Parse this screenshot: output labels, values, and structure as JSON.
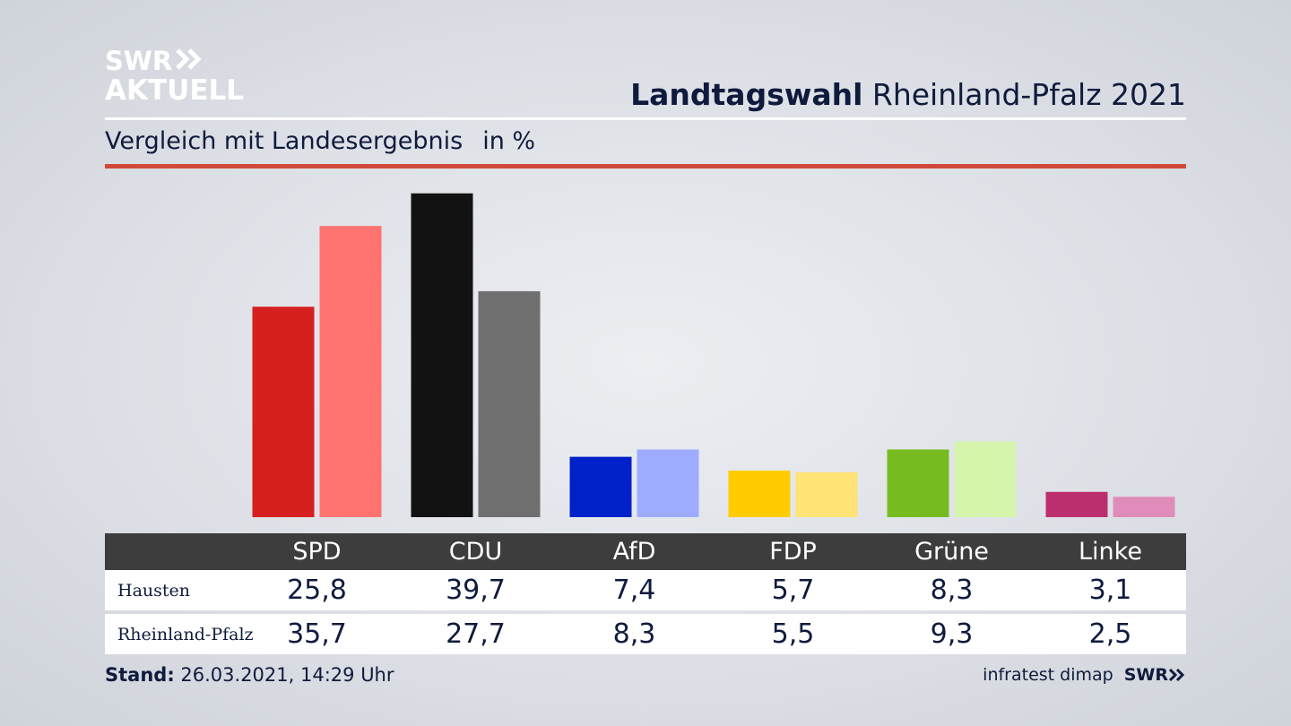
{
  "logo": {
    "line1": "SWR",
    "line2": "AKTUELL"
  },
  "headline": {
    "bold": "Landtagswahl",
    "rest": "Rheinland-Pfalz 2021"
  },
  "subtitle": {
    "text": "Vergleich mit Landesergebnis",
    "unit": "in %"
  },
  "colors": {
    "accent_rule": "#cf4a3a",
    "table_header": "#3e3d3d"
  },
  "chart_data": {
    "type": "bar",
    "categories": [
      "SPD",
      "CDU",
      "AfD",
      "FDP",
      "Grüne",
      "Linke"
    ],
    "series": [
      {
        "name": "Hausten",
        "values": [
          25.8,
          39.7,
          7.4,
          5.7,
          8.3,
          3.1
        ],
        "colors": [
          "#d61f1f",
          "#121212",
          "#0021c9",
          "#ffcc00",
          "#76bc21",
          "#bb2f6f"
        ]
      },
      {
        "name": "Rheinland-Pfalz",
        "values": [
          35.7,
          27.7,
          8.3,
          5.5,
          9.3,
          2.5
        ],
        "colors": [
          "#ff7370",
          "#706f6f",
          "#9eacff",
          "#ffe375",
          "#d5f5ad",
          "#e08cba"
        ]
      }
    ],
    "ylim": [
      0,
      40
    ],
    "xlabel": "",
    "ylabel": "",
    "grid": false
  },
  "table": {
    "headers": [
      "SPD",
      "CDU",
      "AfD",
      "FDP",
      "Grüne",
      "Linke"
    ],
    "rows": [
      {
        "label": "Hausten",
        "values": [
          "25,8",
          "39,7",
          "7,4",
          "5,7",
          "8,3",
          "3,1"
        ]
      },
      {
        "label": "Rheinland-Pfalz",
        "values": [
          "35,7",
          "27,7",
          "8,3",
          "5,5",
          "9,3",
          "2,5"
        ]
      }
    ]
  },
  "footer": {
    "stand_label": "Stand:",
    "stand_value": "26.03.2021, 14:29 Uhr",
    "source": "infratest dimap",
    "brand": "SWR"
  }
}
